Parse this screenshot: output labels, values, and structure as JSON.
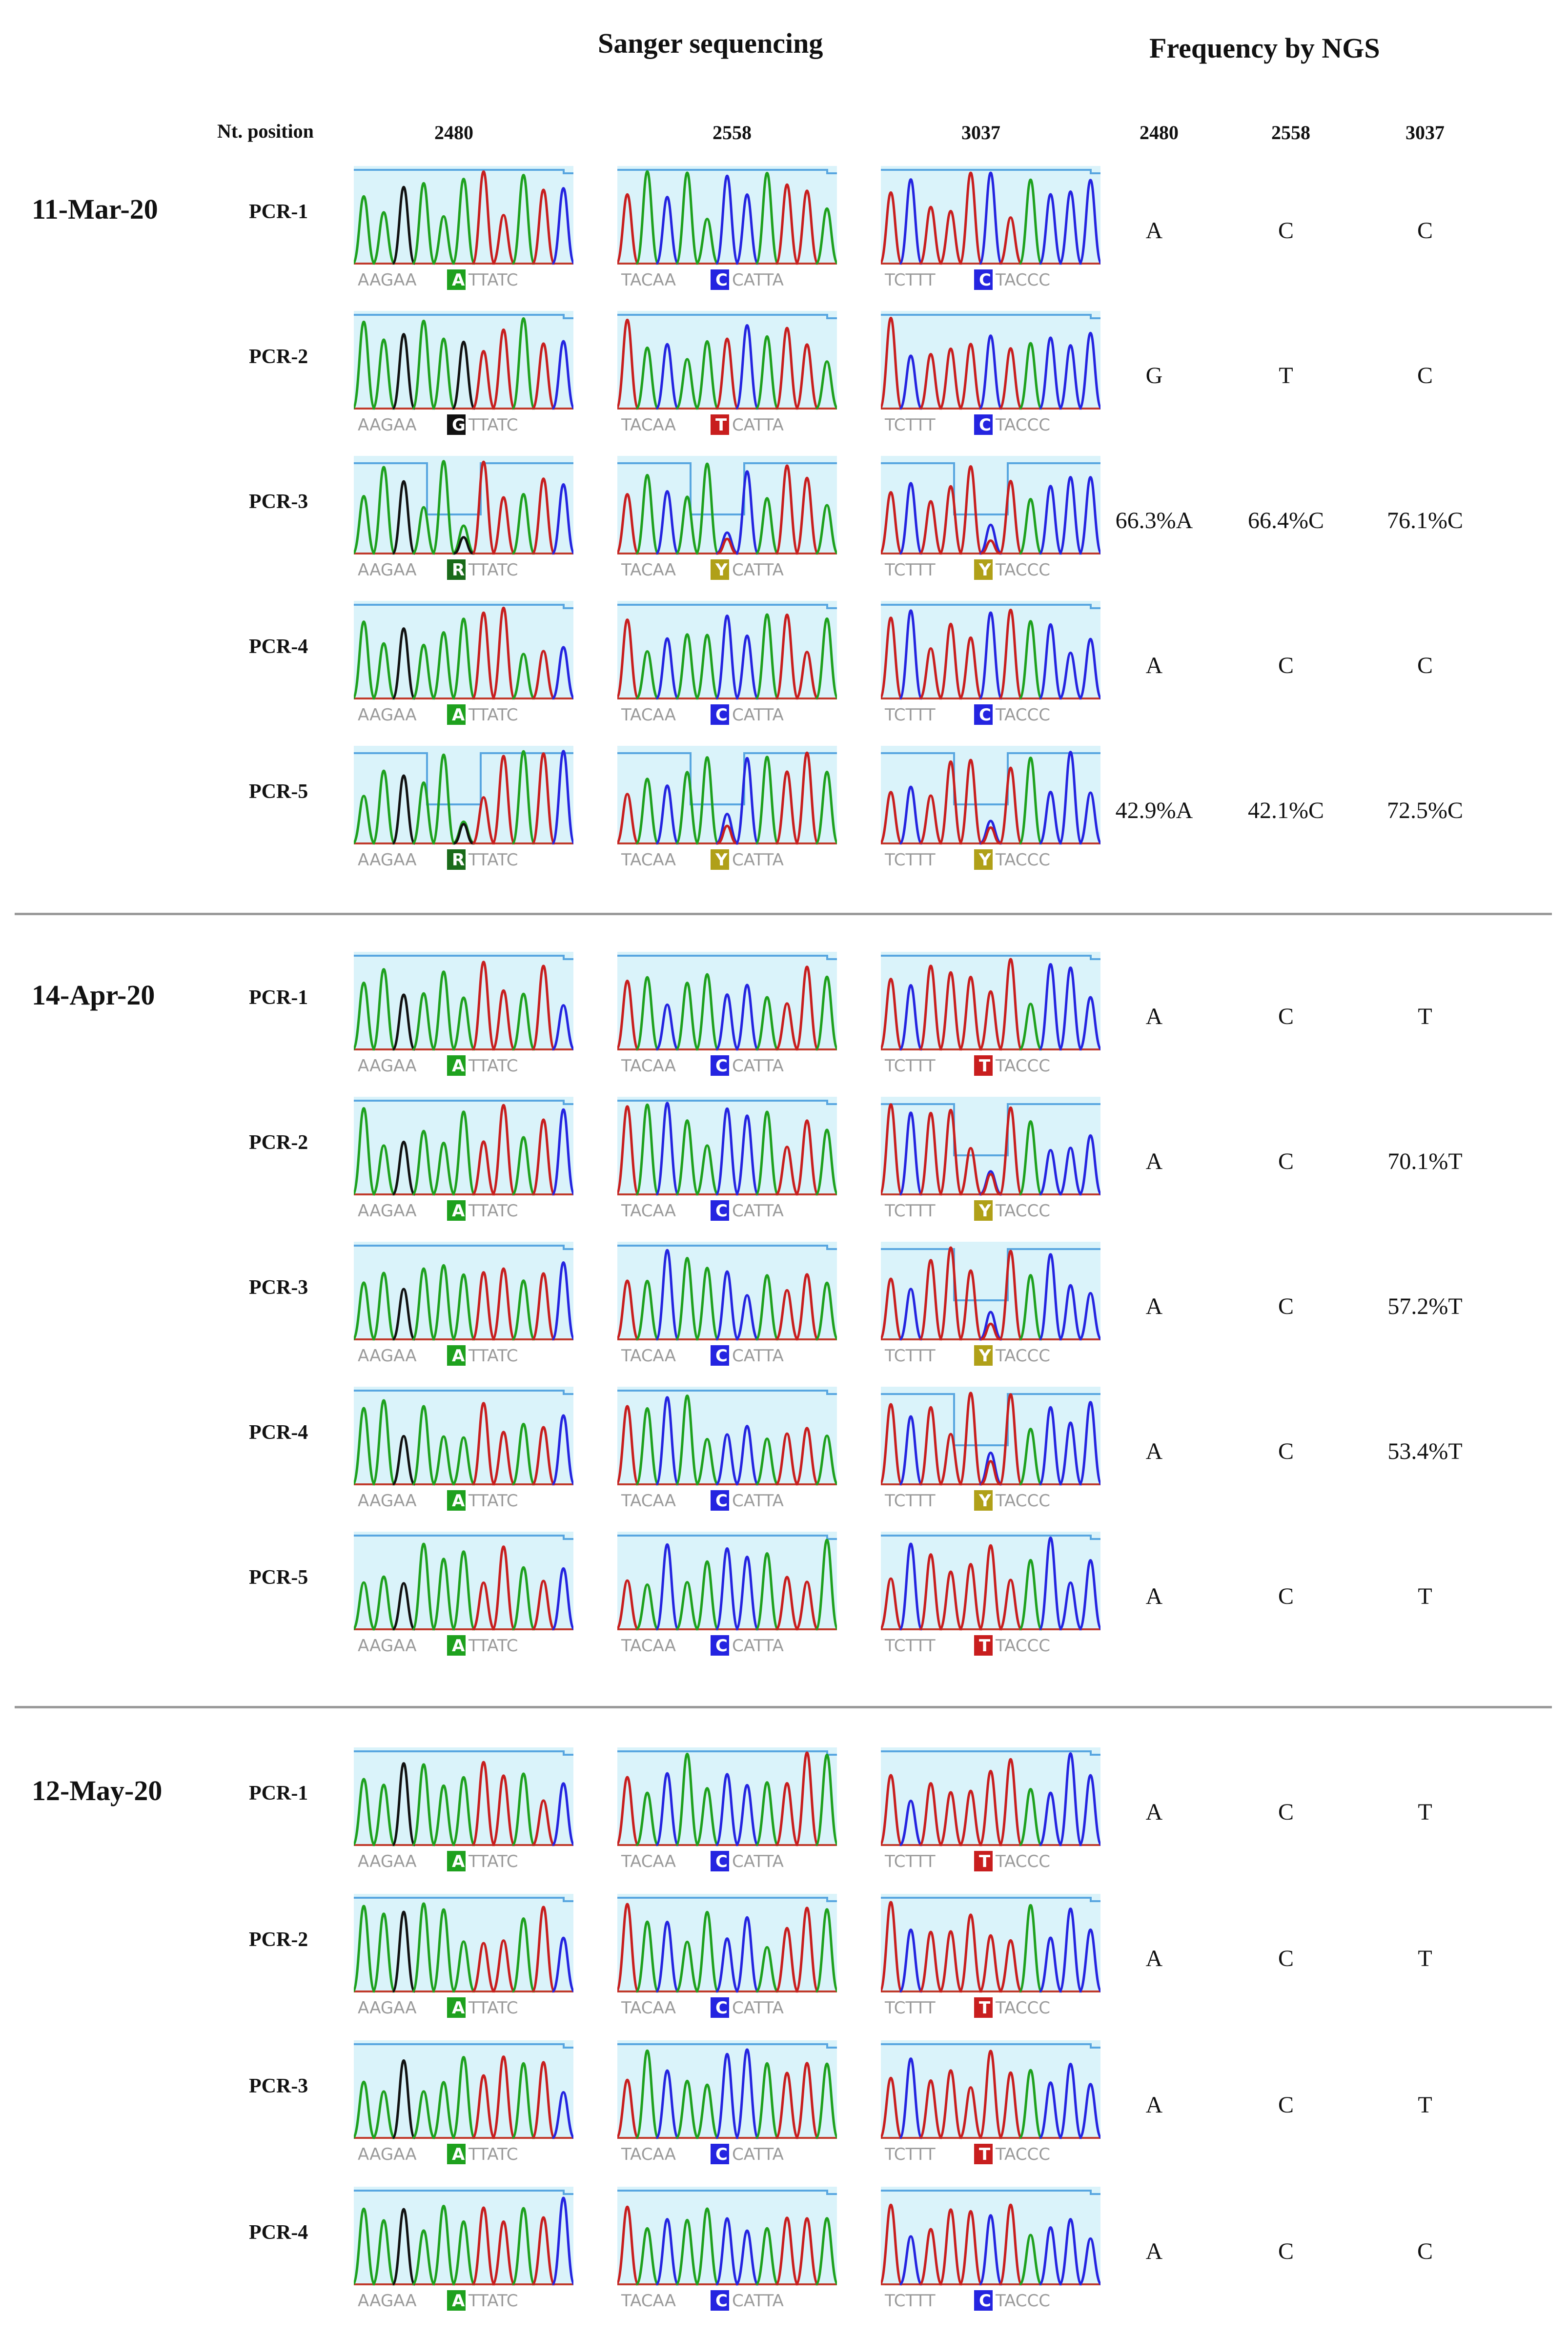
{
  "headers": {
    "sanger": "Sanger sequencing",
    "ngs": "Frequency by NGS",
    "nt_position": "Nt. position",
    "positions": [
      "2480",
      "2558",
      "3037"
    ],
    "ngs_positions": [
      "2480",
      "2558",
      "3037"
    ]
  },
  "colors": {
    "panel_bg": "#daf3fa",
    "quality_line": "#58a6e0",
    "baseline": "#c03a2b",
    "A": "#1ea11e",
    "C": "#2424e0",
    "G": "#111111",
    "T": "#c81e1e",
    "R": "#1a6b1a",
    "Y": "#b0a018",
    "separator": "#9a9a9a"
  },
  "groups": [
    {
      "date": "11-Mar-20",
      "rows": [
        {
          "pcr": "PCR-1",
          "ngs": [
            "A",
            "C",
            "C"
          ],
          "seqs": [
            {
              "pre": "AAGAA",
              "base": "A",
              "post": "TTATC"
            },
            {
              "pre": "TACAA",
              "base": "C",
              "post": "CATTA"
            },
            {
              "pre": "TCTTT",
              "base": "C",
              "post": "TACCC"
            }
          ]
        },
        {
          "pcr": "PCR-2",
          "ngs": [
            "G",
            "T",
            "C"
          ],
          "seqs": [
            {
              "pre": "AAGAA",
              "base": "G",
              "post": "TTATC"
            },
            {
              "pre": "TACAA",
              "base": "T",
              "post": "CATTA"
            },
            {
              "pre": "TCTTT",
              "base": "C",
              "post": "TACCC"
            }
          ]
        },
        {
          "pcr": "PCR-3",
          "ngs": [
            "66.3%A",
            "66.4%C",
            "76.1%C"
          ],
          "seqs": [
            {
              "pre": "AAGAA",
              "base": "R",
              "post": "TTATC"
            },
            {
              "pre": "TACAA",
              "base": "Y",
              "post": "CATTA"
            },
            {
              "pre": "TCTTT",
              "base": "Y",
              "post": "TACCC"
            }
          ]
        },
        {
          "pcr": "PCR-4",
          "ngs": [
            "A",
            "C",
            "C"
          ],
          "seqs": [
            {
              "pre": "AAGAA",
              "base": "A",
              "post": "TTATC"
            },
            {
              "pre": "TACAA",
              "base": "C",
              "post": "CATTA"
            },
            {
              "pre": "TCTTT",
              "base": "C",
              "post": "TACCC"
            }
          ]
        },
        {
          "pcr": "PCR-5",
          "ngs": [
            "42.9%A",
            "42.1%C",
            "72.5%C"
          ],
          "seqs": [
            {
              "pre": "AAGAA",
              "base": "R",
              "post": "TTATC"
            },
            {
              "pre": "TACAA",
              "base": "Y",
              "post": "CATTA"
            },
            {
              "pre": "TCTTT",
              "base": "Y",
              "post": "TACCC"
            }
          ]
        }
      ]
    },
    {
      "date": "14-Apr-20",
      "rows": [
        {
          "pcr": "PCR-1",
          "ngs": [
            "A",
            "C",
            "T"
          ],
          "seqs": [
            {
              "pre": "AAGAA",
              "base": "A",
              "post": "TTATC"
            },
            {
              "pre": "TACAA",
              "base": "C",
              "post": "CATTA"
            },
            {
              "pre": "TCTTT",
              "base": "T",
              "post": "TACCC"
            }
          ]
        },
        {
          "pcr": "PCR-2",
          "ngs": [
            "A",
            "C",
            "70.1%T"
          ],
          "seqs": [
            {
              "pre": "AAGAA",
              "base": "A",
              "post": "TTATC"
            },
            {
              "pre": "TACAA",
              "base": "C",
              "post": "CATTA"
            },
            {
              "pre": "TCTTT",
              "base": "Y",
              "post": "TACCC"
            }
          ]
        },
        {
          "pcr": "PCR-3",
          "ngs": [
            "A",
            "C",
            "57.2%T"
          ],
          "seqs": [
            {
              "pre": "AAGAA",
              "base": "A",
              "post": "TTATC"
            },
            {
              "pre": "TACAA",
              "base": "C",
              "post": "CATTA"
            },
            {
              "pre": "TCTTT",
              "base": "Y",
              "post": "TACCC"
            }
          ]
        },
        {
          "pcr": "PCR-4",
          "ngs": [
            "A",
            "C",
            "53.4%T"
          ],
          "seqs": [
            {
              "pre": "AAGAA",
              "base": "A",
              "post": "TTATC"
            },
            {
              "pre": "TACAA",
              "base": "C",
              "post": "CATTA"
            },
            {
              "pre": "TCTTT",
              "base": "Y",
              "post": "TACCC"
            }
          ]
        },
        {
          "pcr": "PCR-5",
          "ngs": [
            "A",
            "C",
            "T"
          ],
          "seqs": [
            {
              "pre": "AAGAA",
              "base": "A",
              "post": "TTATC"
            },
            {
              "pre": "TACAA",
              "base": "C",
              "post": "CATTA"
            },
            {
              "pre": "TCTTT",
              "base": "T",
              "post": "TACCC"
            }
          ]
        }
      ]
    },
    {
      "date": "12-May-20",
      "rows": [
        {
          "pcr": "PCR-1",
          "ngs": [
            "A",
            "C",
            "T"
          ],
          "seqs": [
            {
              "pre": "AAGAA",
              "base": "A",
              "post": "TTATC"
            },
            {
              "pre": "TACAA",
              "base": "C",
              "post": "CATTA"
            },
            {
              "pre": "TCTTT",
              "base": "T",
              "post": "TACCC"
            }
          ]
        },
        {
          "pcr": "PCR-2",
          "ngs": [
            "A",
            "C",
            "T"
          ],
          "seqs": [
            {
              "pre": "AAGAA",
              "base": "A",
              "post": "TTATC"
            },
            {
              "pre": "TACAA",
              "base": "C",
              "post": "CATTA"
            },
            {
              "pre": "TCTTT",
              "base": "T",
              "post": "TACCC"
            }
          ]
        },
        {
          "pcr": "PCR-3",
          "ngs": [
            "A",
            "C",
            "T"
          ],
          "seqs": [
            {
              "pre": "AAGAA",
              "base": "A",
              "post": "TTATC"
            },
            {
              "pre": "TACAA",
              "base": "C",
              "post": "CATTA"
            },
            {
              "pre": "TCTTT",
              "base": "T",
              "post": "TACCC"
            }
          ]
        },
        {
          "pcr": "PCR-4",
          "ngs": [
            "A",
            "C",
            "C"
          ],
          "seqs": [
            {
              "pre": "AAGAA",
              "base": "A",
              "post": "TTATC"
            },
            {
              "pre": "TACAA",
              "base": "C",
              "post": "CATTA"
            },
            {
              "pre": "TCTTT",
              "base": "C",
              "post": "TACCC"
            }
          ]
        }
      ]
    }
  ]
}
